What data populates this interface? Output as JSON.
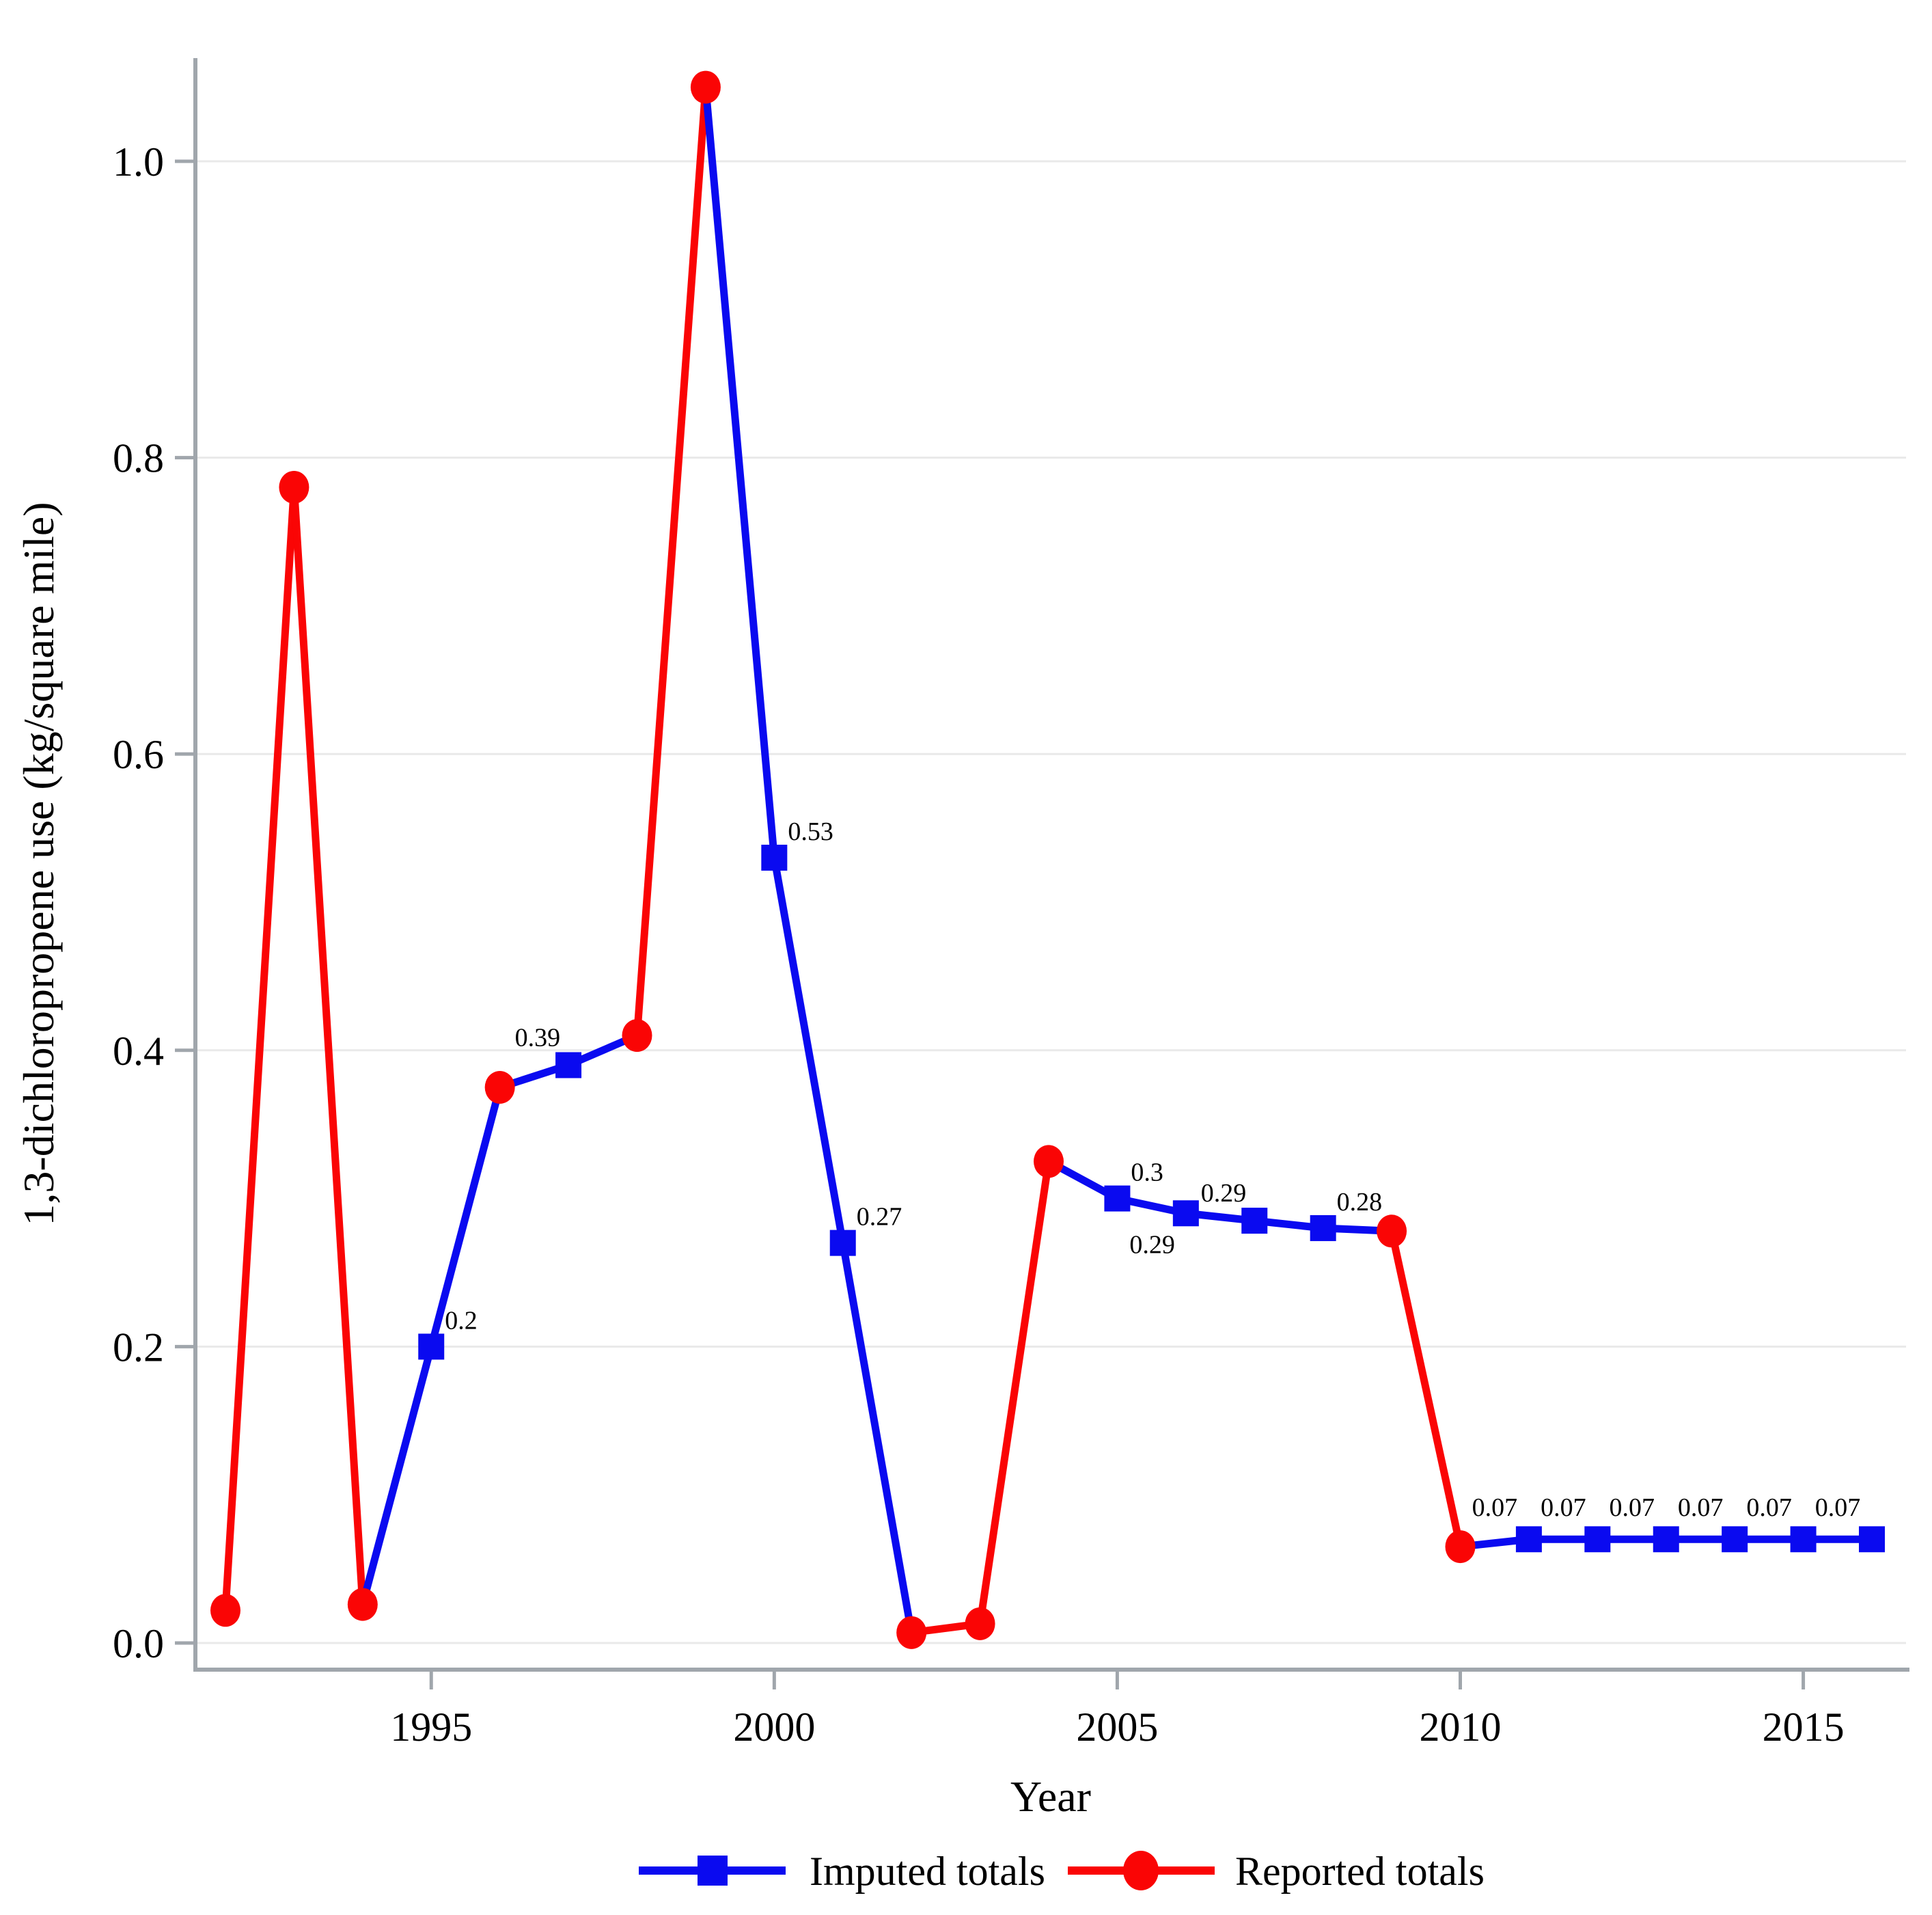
{
  "chart_data": {
    "type": "line",
    "title": "",
    "xlabel": "Year",
    "ylabel": "1,3-dichloropropene use (kg/square mile)",
    "x_ticks": [
      "1995",
      "2000",
      "2005",
      "2010",
      "2015"
    ],
    "x_tick_years": [
      1995,
      2000,
      2005,
      2010,
      2015
    ],
    "y_ticks": [
      "0.0",
      "0.2",
      "0.4",
      "0.6",
      "0.8",
      "1.0"
    ],
    "y_tick_values": [
      0.0,
      0.2,
      0.4,
      0.6,
      0.8,
      1.0
    ],
    "xlim": [
      1991.5,
      2016.5
    ],
    "ylim": [
      0,
      1.07
    ],
    "grid": "horizontal-only",
    "legend_position": "bottom-center",
    "segment_color_rule": "segments joining two reported points are red; all other segments are blue",
    "series": [
      {
        "name": "Imputed totals",
        "color": "#0a0af0",
        "marker": "square",
        "points": [
          {
            "year": 1995,
            "value": 0.2,
            "label": "0.2",
            "label_pos": "above-right"
          },
          {
            "year": 1997,
            "value": 0.39,
            "label": "0.39",
            "label_pos": "above-left"
          },
          {
            "year": 2000,
            "value": 0.53,
            "label": "0.53",
            "label_pos": "above-right"
          },
          {
            "year": 2001,
            "value": 0.27,
            "label": "0.27",
            "label_pos": "above-right"
          },
          {
            "year": 2005,
            "value": 0.3,
            "label": "0.3",
            "label_pos": "above-right"
          },
          {
            "year": 2006,
            "value": 0.29,
            "label": "0.29",
            "label_pos": "below-left"
          },
          {
            "year": 2007,
            "value": 0.285,
            "label": "0.29",
            "label_pos": "above-left"
          },
          {
            "year": 2008,
            "value": 0.28,
            "label": "0.28",
            "label_pos": "above-right"
          },
          {
            "year": 2011,
            "value": 0.07,
            "label": "0.07",
            "label_pos": "above-mid-left"
          },
          {
            "year": 2012,
            "value": 0.07,
            "label": "0.07",
            "label_pos": "above-mid-left"
          },
          {
            "year": 2013,
            "value": 0.07,
            "label": "0.07",
            "label_pos": "above-mid-left"
          },
          {
            "year": 2014,
            "value": 0.07,
            "label": "0.07",
            "label_pos": "above-mid-left"
          },
          {
            "year": 2015,
            "value": 0.07,
            "label": "0.07",
            "label_pos": "above-mid-left"
          },
          {
            "year": 2016,
            "value": 0.07,
            "label": "0.07",
            "label_pos": "above-mid-left"
          }
        ]
      },
      {
        "name": "Reported totals",
        "color": "#fa0505",
        "marker": "circle",
        "points": [
          {
            "year": 1992,
            "value": 0.022
          },
          {
            "year": 1993,
            "value": 0.78
          },
          {
            "year": 1994,
            "value": 0.026
          },
          {
            "year": 1996,
            "value": 0.375
          },
          {
            "year": 1998,
            "value": 0.41
          },
          {
            "year": 1999,
            "value": 1.05
          },
          {
            "year": 2002,
            "value": 0.007
          },
          {
            "year": 2003,
            "value": 0.013
          },
          {
            "year": 2004,
            "value": 0.325
          },
          {
            "year": 2009,
            "value": 0.278
          },
          {
            "year": 2010,
            "value": 0.065
          }
        ]
      }
    ]
  },
  "colors": {
    "imputed_blue": "#0a0af0",
    "reported_red": "#fa0505",
    "gridline": "#e9e9e9",
    "axis": "#a0a6ac",
    "text": "#000000",
    "background": "#ffffff"
  }
}
